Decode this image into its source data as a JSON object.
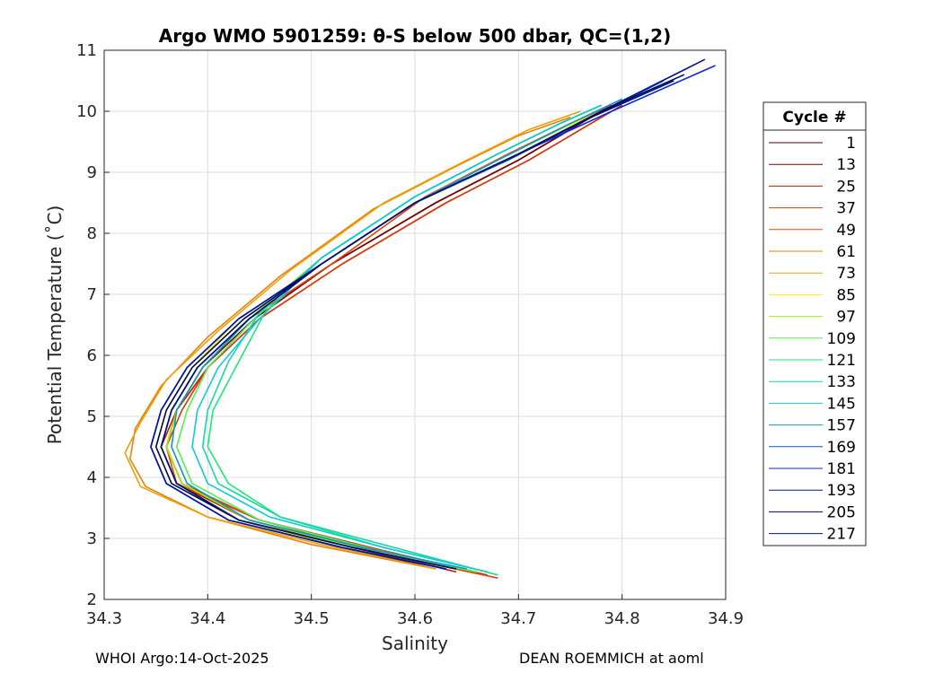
{
  "chart_data": {
    "type": "line",
    "title": "Argo WMO 5901259: θ-S below 500 dbar,  QC=(1,2)",
    "xlabel": "Salinity",
    "ylabel": "Potential Temperature (˚C)",
    "xlim": [
      34.3,
      34.9
    ],
    "ylim": [
      2,
      11
    ],
    "xticks": [
      "34.3",
      "34.4",
      "34.5",
      "34.6",
      "34.7",
      "34.8",
      "34.9"
    ],
    "yticks": [
      "2",
      "3",
      "4",
      "5",
      "6",
      "7",
      "8",
      "9",
      "10",
      "11"
    ],
    "grid": true,
    "legend_title": "Cycle #",
    "legend_position": "right",
    "series": [
      {
        "name": "1",
        "color": "#400000",
        "x": [
          34.62,
          34.53,
          34.43,
          34.37,
          34.355,
          34.365,
          34.39,
          34.44,
          34.52,
          34.62,
          34.7,
          34.76,
          34.79
        ],
        "y": [
          2.5,
          2.85,
          3.3,
          3.9,
          4.5,
          5.1,
          5.8,
          6.6,
          7.5,
          8.5,
          9.2,
          9.8,
          10.1
        ]
      },
      {
        "name": "13",
        "color": "#7a0000",
        "x": [
          34.63,
          34.54,
          34.44,
          34.375,
          34.36,
          34.37,
          34.395,
          34.445,
          34.52,
          34.62,
          34.7,
          34.76,
          34.79
        ],
        "y": [
          2.5,
          2.85,
          3.3,
          3.9,
          4.5,
          5.1,
          5.8,
          6.6,
          7.5,
          8.5,
          9.2,
          9.8,
          10.1
        ]
      },
      {
        "name": "25",
        "color": "#b81c00",
        "x": [
          34.64,
          34.55,
          34.44,
          34.37,
          34.355,
          34.37,
          34.4,
          34.45,
          34.53,
          34.63,
          34.71,
          34.77,
          34.8
        ],
        "y": [
          2.45,
          2.82,
          3.3,
          3.9,
          4.5,
          5.1,
          5.8,
          6.6,
          7.5,
          8.5,
          9.2,
          9.8,
          10.1
        ]
      },
      {
        "name": "37",
        "color": "#d93a0a",
        "x": [
          34.67,
          34.57,
          34.45,
          34.375,
          34.36,
          34.375,
          34.4,
          34.45,
          34.53,
          34.63,
          34.71,
          34.77,
          34.8
        ],
        "y": [
          2.4,
          2.8,
          3.3,
          3.9,
          4.5,
          5.1,
          5.8,
          6.6,
          7.5,
          8.5,
          9.2,
          9.8,
          10.1
        ]
      },
      {
        "name": "49",
        "color": "#e0450a",
        "x": [
          34.68,
          34.57,
          34.45,
          34.37,
          34.36,
          34.37,
          34.395,
          34.44,
          34.52,
          34.61,
          34.69,
          34.75,
          34.79
        ],
        "y": [
          2.35,
          2.75,
          3.3,
          3.9,
          4.5,
          5.1,
          5.8,
          6.6,
          7.5,
          8.6,
          9.3,
          9.8,
          10.1
        ]
      },
      {
        "name": "61",
        "color": "#e8820a",
        "x": [
          34.62,
          34.5,
          34.4,
          34.34,
          34.325,
          34.33,
          34.355,
          34.4,
          34.47,
          34.56,
          34.64,
          34.7,
          34.75
        ],
        "y": [
          2.5,
          2.9,
          3.35,
          3.85,
          4.3,
          4.8,
          5.5,
          6.3,
          7.3,
          8.4,
          9.1,
          9.6,
          9.9
        ]
      },
      {
        "name": "73",
        "color": "#f0a000",
        "x": [
          34.62,
          34.51,
          34.4,
          34.335,
          34.32,
          34.335,
          34.36,
          34.41,
          34.48,
          34.57,
          34.65,
          34.71,
          34.76
        ],
        "y": [
          2.5,
          2.9,
          3.35,
          3.85,
          4.4,
          4.9,
          5.6,
          6.4,
          7.4,
          8.5,
          9.2,
          9.7,
          10.0
        ]
      },
      {
        "name": "85",
        "color": "#f5f000",
        "x": [
          34.63,
          34.53,
          34.43,
          34.365,
          34.35,
          34.36,
          34.385,
          34.43,
          34.51,
          34.6,
          34.68,
          34.74,
          34.78
        ],
        "y": [
          2.5,
          2.85,
          3.3,
          3.9,
          4.5,
          5.1,
          5.8,
          6.6,
          7.5,
          8.5,
          9.2,
          9.7,
          10.0
        ]
      },
      {
        "name": "97",
        "color": "#a0f000",
        "x": [
          34.66,
          34.55,
          34.44,
          34.375,
          34.36,
          34.37,
          34.395,
          34.44,
          34.51,
          34.6,
          34.68,
          34.74,
          34.78
        ],
        "y": [
          2.45,
          2.82,
          3.3,
          3.9,
          4.5,
          5.1,
          5.8,
          6.6,
          7.6,
          8.6,
          9.3,
          9.8,
          10.1
        ]
      },
      {
        "name": "109",
        "color": "#50f050",
        "x": [
          34.66,
          34.56,
          34.45,
          34.385,
          34.37,
          34.38,
          34.4,
          34.445,
          34.51,
          34.6,
          34.68,
          34.74,
          34.78
        ],
        "y": [
          2.45,
          2.82,
          3.3,
          3.9,
          4.5,
          5.1,
          5.8,
          6.6,
          7.6,
          8.6,
          9.3,
          9.8,
          10.1
        ]
      },
      {
        "name": "121",
        "color": "#1ee87a",
        "x": [
          34.67,
          34.57,
          34.47,
          34.42,
          34.4,
          34.405,
          34.43,
          34.455,
          34.51,
          34.6,
          34.68,
          34.74,
          34.78
        ],
        "y": [
          2.45,
          2.85,
          3.35,
          3.9,
          4.5,
          5.1,
          5.9,
          6.7,
          7.6,
          8.6,
          9.3,
          9.8,
          10.1
        ]
      },
      {
        "name": "133",
        "color": "#14d8a8",
        "x": [
          34.68,
          34.58,
          34.47,
          34.41,
          34.395,
          34.4,
          34.42,
          34.45,
          34.51,
          34.6,
          34.68,
          34.74,
          34.78
        ],
        "y": [
          2.4,
          2.85,
          3.35,
          3.9,
          4.5,
          5.1,
          5.9,
          6.7,
          7.6,
          8.6,
          9.3,
          9.8,
          10.1
        ]
      },
      {
        "name": "145",
        "color": "#14c8d8",
        "x": [
          34.67,
          34.57,
          34.46,
          34.4,
          34.385,
          34.39,
          34.41,
          34.45,
          34.51,
          34.6,
          34.68,
          34.74,
          34.78
        ],
        "y": [
          2.45,
          2.85,
          3.35,
          3.9,
          4.5,
          5.1,
          5.8,
          6.6,
          7.6,
          8.6,
          9.3,
          9.8,
          10.1
        ]
      },
      {
        "name": "157",
        "color": "#0a96c8",
        "x": [
          34.65,
          34.55,
          34.44,
          34.38,
          34.365,
          34.37,
          34.395,
          34.44,
          34.51,
          34.6,
          34.68,
          34.75,
          34.8
        ],
        "y": [
          2.5,
          2.85,
          3.3,
          3.9,
          4.5,
          5.1,
          5.8,
          6.6,
          7.5,
          8.5,
          9.2,
          9.8,
          10.2
        ]
      },
      {
        "name": "169",
        "color": "#0a5ac8",
        "x": [
          34.64,
          34.54,
          34.43,
          34.37,
          34.355,
          34.365,
          34.39,
          34.44,
          34.51,
          34.6,
          34.69,
          34.77,
          34.84
        ],
        "y": [
          2.5,
          2.85,
          3.3,
          3.9,
          4.5,
          5.1,
          5.8,
          6.6,
          7.5,
          8.5,
          9.2,
          9.9,
          10.5
        ]
      },
      {
        "name": "181",
        "color": "#0a28e6",
        "x": [
          34.63,
          34.53,
          34.42,
          34.36,
          34.345,
          34.355,
          34.38,
          34.43,
          34.51,
          34.6,
          34.7,
          34.79,
          34.89
        ],
        "y": [
          2.5,
          2.85,
          3.3,
          3.9,
          4.5,
          5.1,
          5.8,
          6.6,
          7.5,
          8.5,
          9.3,
          10.0,
          10.75
        ]
      },
      {
        "name": "193",
        "color": "#0014a0",
        "x": [
          34.63,
          34.53,
          34.42,
          34.36,
          34.345,
          34.355,
          34.38,
          34.43,
          34.51,
          34.6,
          34.7,
          34.78,
          34.88
        ],
        "y": [
          2.5,
          2.85,
          3.3,
          3.9,
          4.5,
          5.1,
          5.8,
          6.6,
          7.5,
          8.5,
          9.3,
          10.0,
          10.85
        ]
      },
      {
        "name": "205",
        "color": "#000a50",
        "x": [
          34.64,
          34.54,
          34.43,
          34.365,
          34.35,
          34.36,
          34.385,
          34.435,
          34.51,
          34.6,
          34.7,
          34.78,
          34.86
        ],
        "y": [
          2.5,
          2.85,
          3.3,
          3.9,
          4.5,
          5.1,
          5.8,
          6.6,
          7.5,
          8.5,
          9.3,
          10.0,
          10.6
        ]
      },
      {
        "name": "217",
        "color": "#00146e",
        "x": [
          34.64,
          34.54,
          34.43,
          34.37,
          34.355,
          34.365,
          34.39,
          34.44,
          34.51,
          34.6,
          34.7,
          34.77,
          34.85
        ],
        "y": [
          2.5,
          2.85,
          3.3,
          3.9,
          4.5,
          5.1,
          5.8,
          6.6,
          7.5,
          8.5,
          9.3,
          9.9,
          10.5
        ]
      }
    ]
  },
  "footer": {
    "left": "WHOI Argo:14-Oct-2025",
    "right": "DEAN ROEMMICH at aoml"
  }
}
